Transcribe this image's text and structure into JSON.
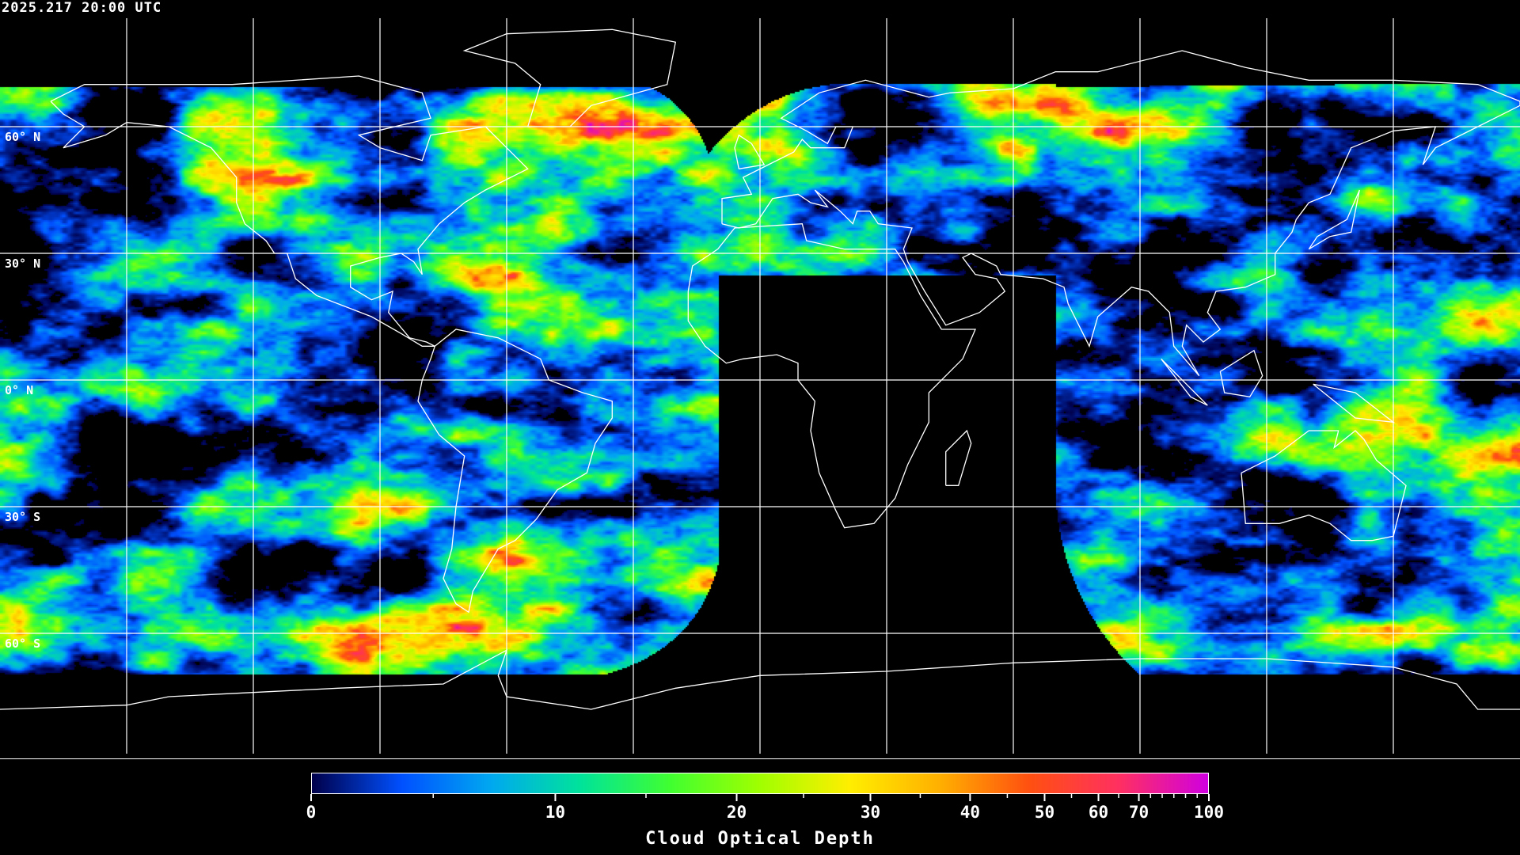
{
  "header": {
    "timestamp": "2025.217 20:00 UTC"
  },
  "map": {
    "projection": "equirectangular",
    "lon_range": [
      -180,
      180
    ],
    "lat_range": [
      -90,
      90
    ],
    "graticule_spacing_deg": 30,
    "gridline_color": "#ffffff",
    "coastline_color": "#ffffff",
    "background_color": "#000000",
    "lat_labels": [
      "60° N",
      "30° N",
      "0° N",
      "30° S",
      "60° S"
    ]
  },
  "colorbar": {
    "title": "Cloud Optical Depth",
    "range": [
      0,
      100
    ],
    "scale": "nonlinear",
    "ticks": [
      {
        "value": 0,
        "label": "0"
      },
      {
        "value": 10,
        "label": "10"
      },
      {
        "value": 20,
        "label": "20"
      },
      {
        "value": 30,
        "label": "30"
      },
      {
        "value": 40,
        "label": "40"
      },
      {
        "value": 50,
        "label": "50"
      },
      {
        "value": 60,
        "label": "60"
      },
      {
        "value": 70,
        "label": "70"
      },
      {
        "value": 100,
        "label": "100"
      }
    ],
    "colors": [
      "#00004a",
      "#0050ff",
      "#00a8f0",
      "#00e39a",
      "#40ff30",
      "#a0ff00",
      "#ffee00",
      "#ffb000",
      "#ff5010",
      "#ff3060",
      "#d000e0"
    ]
  }
}
